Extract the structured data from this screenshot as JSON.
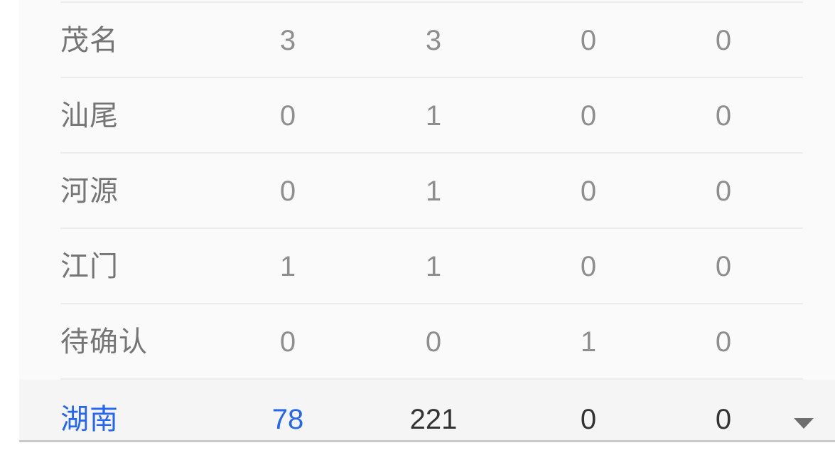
{
  "table": {
    "rows": [
      {
        "label": "茂名",
        "values": [
          "3",
          "3",
          "0",
          "0"
        ]
      },
      {
        "label": "汕尾",
        "values": [
          "0",
          "1",
          "0",
          "0"
        ]
      },
      {
        "label": "河源",
        "values": [
          "0",
          "1",
          "0",
          "0"
        ]
      },
      {
        "label": "江门",
        "values": [
          "1",
          "1",
          "0",
          "0"
        ]
      },
      {
        "label": "待确认",
        "values": [
          "0",
          "0",
          "1",
          "0"
        ]
      }
    ],
    "summary_row": {
      "label": "湖南",
      "values": [
        "78",
        "221",
        "0",
        "0"
      ],
      "expand_icon": "triangle-down"
    }
  },
  "colors": {
    "accent_blue": "#2465f1",
    "row_label": "#757575",
    "row_value": "#8e8e8e",
    "dark_value": "#333333",
    "separator": "#ececec",
    "panel_bottom_border": "#c9c9c9",
    "panel_bg": "#fafafa",
    "summary_row_bg": "#f5f5f5",
    "arrow": "#6e6e6e"
  }
}
